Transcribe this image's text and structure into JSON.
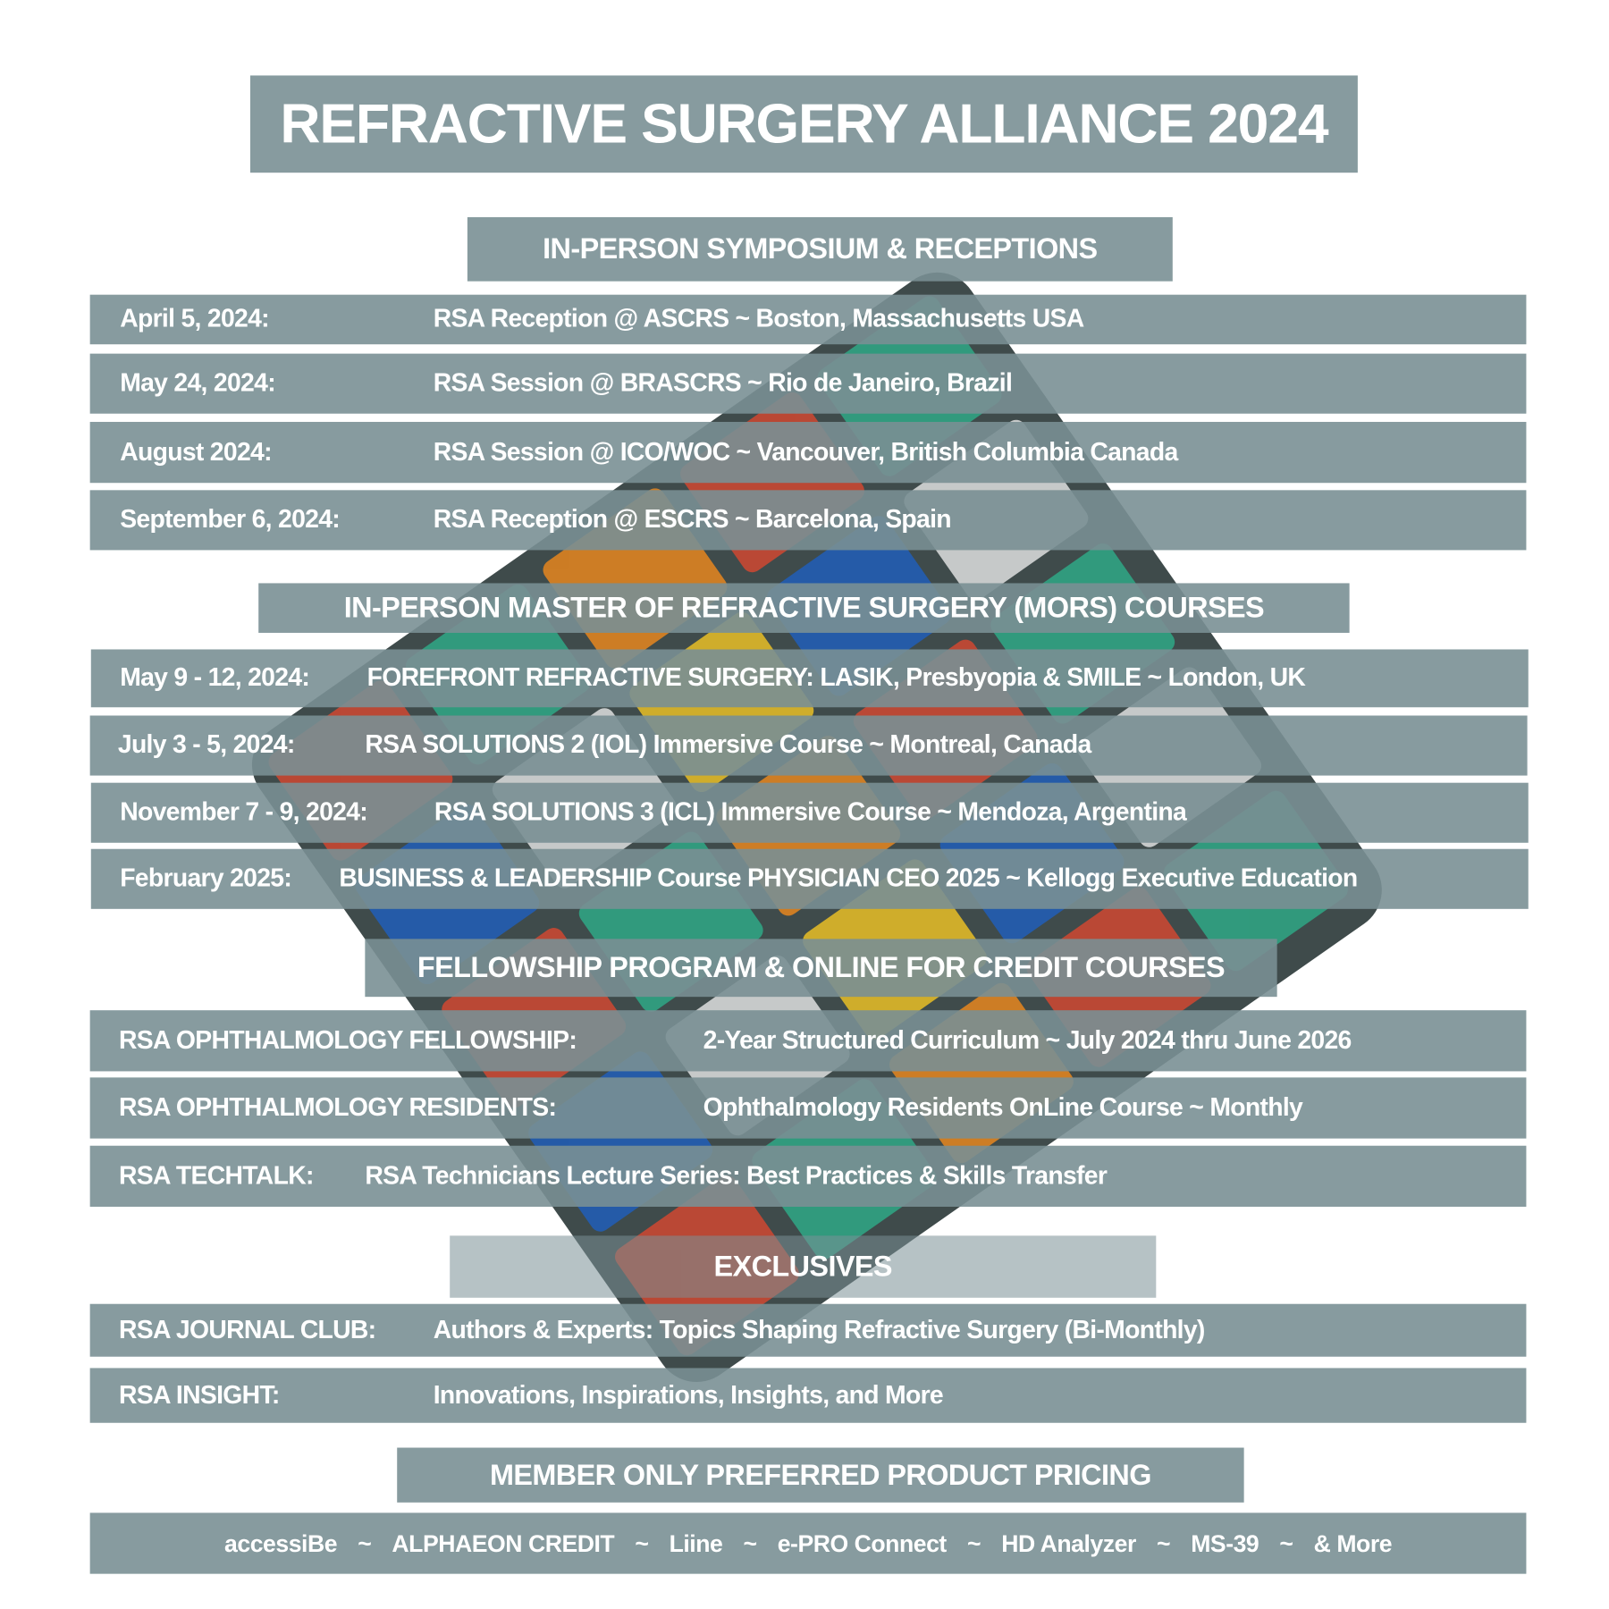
{
  "title": "REFRACTIVE SURGERY ALLIANCE 2024",
  "sections": [
    {
      "heading": "IN-PERSON SYMPOSIUM & RECEPTIONS",
      "rows": [
        {
          "date": "April 5, 2024:",
          "event": "RSA Reception @ ASCRS  ~  Boston, Massachusetts  USA"
        },
        {
          "date": "May 24, 2024:",
          "event": "RSA Session @ BRASCRS  ~  Rio de Janeiro,  Brazil"
        },
        {
          "date": "August 2024:",
          "event": "RSA Session @ ICO/WOC  ~  Vancouver, British Columbia  Canada"
        },
        {
          "date": "September 6, 2024:",
          "event": "RSA Reception @ ESCRS  ~  Barcelona,  Spain"
        }
      ]
    },
    {
      "heading": "IN-PERSON MASTER OF REFRACTIVE SURGERY (MORS) COURSES",
      "rows": [
        {
          "date": "May 9 - 12, 2024:",
          "event": "FOREFRONT REFRACTIVE SURGERY:  LASIK, Presbyopia & SMILE  ~  London, UK"
        },
        {
          "date": "July 3 - 5, 2024:",
          "event": "RSA SOLUTIONS 2 (IOL) Immersive Course  ~  Montreal, Canada"
        },
        {
          "date": "November 7 - 9, 2024:",
          "event": "RSA SOLUTIONS 3 (ICL) Immersive Course  ~  Mendoza, Argentina"
        },
        {
          "date": "February 2025:",
          "event": "BUSINESS & LEADERSHIP Course PHYSICIAN CEO 2025  ~  Kellogg Executive Education"
        }
      ]
    },
    {
      "heading": "FELLOWSHIP PROGRAM & ONLINE FOR CREDIT COURSES",
      "rows": [
        {
          "date": "RSA OPHTHALMOLOGY FELLOWSHIP:",
          "event": "2-Year Structured Curriculum ~ July 2024 thru June 2026"
        },
        {
          "date": "RSA OPHTHALMOLOGY RESIDENTS:",
          "event": "Ophthalmology Residents OnLine Course  ~  Monthly"
        },
        {
          "date": "RSA TECHTALK:",
          "event": "RSA Technicians Lecture Series:  Best Practices &  Skills Transfer"
        }
      ]
    },
    {
      "heading": "EXCLUSIVES",
      "rows": [
        {
          "date": "RSA JOURNAL CLUB:",
          "event": "Authors & Experts:  Topics Shaping Refractive Surgery (Bi-Monthly)"
        },
        {
          "date": "RSA INSIGHT:",
          "event": "Innovations, Inspirations, Insights, and More"
        }
      ]
    },
    {
      "heading": "MEMBER ONLY PREFERRED PRODUCT PRICING",
      "partners": [
        "accessiBe",
        "~",
        "ALPHAEON CREDIT",
        "~",
        "Liine",
        "~",
        "e-PRO Connect",
        "~",
        "HD Analyzer",
        "~",
        "MS-39",
        "~",
        "& More"
      ]
    }
  ],
  "colors": {
    "bar": "#7a9095",
    "text": "#ffffff"
  },
  "background_image": "rubiks-cube-photo"
}
